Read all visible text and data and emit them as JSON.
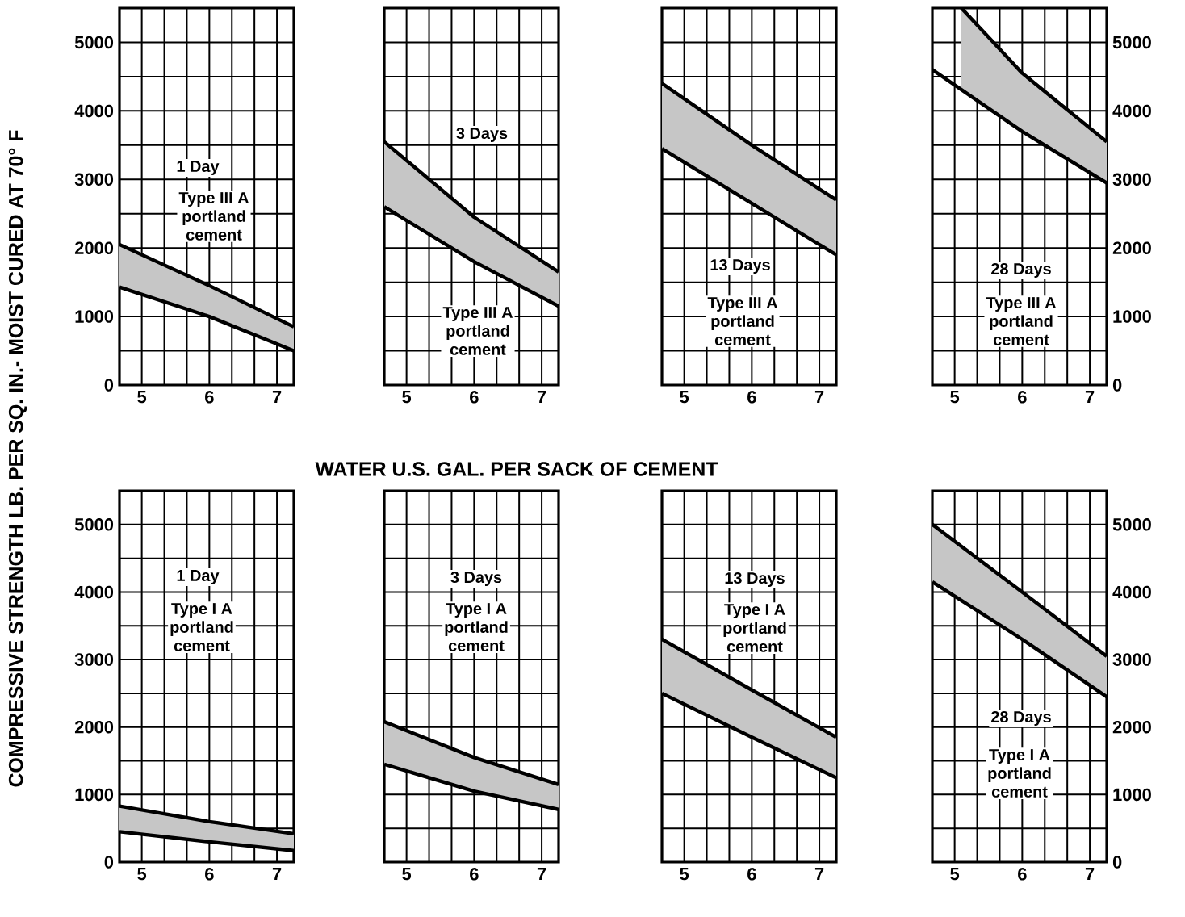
{
  "chart_data": [
    {
      "type": "line",
      "title": "1 Day",
      "annotations": [
        "Type III A",
        "portland",
        "cement"
      ],
      "ylabel": "COMPRESSIVE STRENGTH LB. PER SQ. IN.- MOIST CURED AT 70° F",
      "xlabel": "WATER U.S. GAL. PER SACK OF CEMENT",
      "xlim": [
        4.67,
        7.25
      ],
      "ylim": [
        0,
        5500
      ],
      "xticks": [
        5,
        6,
        7
      ],
      "yticks": [
        0,
        1000,
        2000,
        3000,
        4000,
        5000
      ],
      "grid": true,
      "series": [
        {
          "color": "#000000",
          "x": [
            4.67,
            6,
            7.25
          ],
          "values": [
            1430,
            1000,
            500
          ]
        },
        {
          "color": "#000000",
          "x": [
            4.67,
            6,
            7.25
          ],
          "values": [
            2050,
            1450,
            850
          ],
          "lower": [
            1430,
            1000,
            500
          ],
          "upper": [
            2050,
            1450,
            850
          ]
        }
      ]
    },
    {
      "type": "line",
      "title": "3 Days",
      "annotations": [
        "Type III A",
        "portland",
        "cement"
      ],
      "xlim": [
        4.67,
        7.25
      ],
      "ylim": [
        0,
        5500
      ],
      "xticks": [
        5,
        6,
        7
      ],
      "yticks": [
        0,
        1000,
        2000,
        3000,
        4000,
        5000
      ],
      "grid": true,
      "tick_labels": "x",
      "series": [
        {
          "color": "#000000",
          "x": [
            4.67,
            6,
            7.25
          ],
          "values": [
            2600,
            1800,
            1150
          ]
        },
        {
          "color": "#000000",
          "x": [
            4.67,
            6,
            7.25
          ],
          "values": [
            3550,
            2450,
            1650
          ],
          "lower": [
            2600,
            1800,
            1150
          ],
          "upper": [
            3550,
            2450,
            1650
          ]
        }
      ]
    },
    {
      "type": "line",
      "title": "13 Days",
      "annotations": [
        "Type III A",
        "portland",
        "cement"
      ],
      "xlim": [
        4.67,
        7.25
      ],
      "ylim": [
        0,
        5500
      ],
      "xticks": [
        5,
        6,
        7
      ],
      "yticks": [
        0,
        1000,
        2000,
        3000,
        4000,
        5000
      ],
      "grid": true,
      "tick_labels": "x",
      "series": [
        {
          "color": "#000000",
          "x": [
            4.67,
            6,
            7.25
          ],
          "values": [
            3450,
            2650,
            1900
          ]
        },
        {
          "color": "#000000",
          "x": [
            4.67,
            6,
            7.25
          ],
          "values": [
            4400,
            3500,
            2700
          ],
          "lower": [
            3450,
            2650,
            1900
          ],
          "upper": [
            4400,
            3500,
            2700
          ]
        }
      ]
    },
    {
      "type": "line",
      "title": "28 Days",
      "annotations": [
        "Type III A",
        "portland",
        "cement"
      ],
      "xlim": [
        4.67,
        7.25
      ],
      "ylim": [
        0,
        5500
      ],
      "xticks": [
        5,
        6,
        7
      ],
      "yticks": [
        0,
        1000,
        2000,
        3000,
        4000,
        5000
      ],
      "grid": true,
      "series": [
        {
          "color": "#000000",
          "x": [
            4.67,
            6,
            7.25
          ],
          "values": [
            4600,
            3700,
            2950
          ]
        },
        {
          "color": "#000000",
          "x": [
            5.1,
            6,
            7.25
          ],
          "values": [
            5500,
            4550,
            3550
          ],
          "lower": [
            4300,
            3700,
            2950
          ],
          "upper": [
            5500,
            4550,
            3550
          ]
        }
      ]
    },
    {
      "type": "line",
      "title": "1 Day",
      "annotations": [
        "Type I A",
        "portland",
        "cement"
      ],
      "xlim": [
        4.67,
        7.25
      ],
      "ylim": [
        0,
        5500
      ],
      "xticks": [
        5,
        6,
        7
      ],
      "yticks": [
        0,
        1000,
        2000,
        3000,
        4000,
        5000
      ],
      "grid": true,
      "series": [
        {
          "color": "#000000",
          "x": [
            4.67,
            6,
            7.25
          ],
          "values": [
            450,
            300,
            170
          ]
        },
        {
          "color": "#000000",
          "x": [
            4.67,
            6,
            7.25
          ],
          "values": [
            830,
            600,
            420
          ],
          "lower": [
            450,
            300,
            170
          ],
          "upper": [
            830,
            600,
            420
          ]
        }
      ]
    },
    {
      "type": "line",
      "title": "3 Days",
      "annotations": [
        "Type I A",
        "portland",
        "cement"
      ],
      "xlim": [
        4.67,
        7.25
      ],
      "ylim": [
        0,
        5500
      ],
      "xticks": [
        5,
        6,
        7
      ],
      "yticks": [
        0,
        1000,
        2000,
        3000,
        4000,
        5000
      ],
      "grid": true,
      "tick_labels": "x",
      "series": [
        {
          "color": "#000000",
          "x": [
            4.67,
            6,
            7.25
          ],
          "values": [
            1450,
            1050,
            780
          ]
        },
        {
          "color": "#000000",
          "x": [
            4.67,
            6,
            7.25
          ],
          "values": [
            2080,
            1550,
            1150
          ],
          "lower": [
            1450,
            1050,
            780
          ],
          "upper": [
            2080,
            1550,
            1150
          ]
        }
      ]
    },
    {
      "type": "line",
      "title": "13 Days",
      "annotations": [
        "Type I A",
        "portland",
        "cement"
      ],
      "xlim": [
        4.67,
        7.25
      ],
      "ylim": [
        0,
        5500
      ],
      "xticks": [
        5,
        6,
        7
      ],
      "yticks": [
        0,
        1000,
        2000,
        3000,
        4000,
        5000
      ],
      "grid": true,
      "tick_labels": "x",
      "series": [
        {
          "color": "#000000",
          "x": [
            4.67,
            6,
            7.25
          ],
          "values": [
            2500,
            1850,
            1250
          ]
        },
        {
          "color": "#000000",
          "x": [
            4.67,
            6,
            7.25
          ],
          "values": [
            3300,
            2550,
            1850
          ],
          "lower": [
            2500,
            1850,
            1250
          ],
          "upper": [
            3300,
            2550,
            1850
          ]
        }
      ]
    },
    {
      "type": "line",
      "title": "28 Days",
      "annotations": [
        "Type I A",
        "portland",
        "cement"
      ],
      "xlim": [
        4.67,
        7.25
      ],
      "ylim": [
        0,
        5500
      ],
      "xticks": [
        5,
        6,
        7
      ],
      "yticks": [
        0,
        1000,
        2000,
        3000,
        4000,
        5000
      ],
      "grid": true,
      "series": [
        {
          "color": "#000000",
          "x": [
            4.67,
            6,
            7.25
          ],
          "values": [
            4150,
            3300,
            2450
          ]
        },
        {
          "color": "#000000",
          "x": [
            4.67,
            6,
            7.25
          ],
          "values": [
            5000,
            4000,
            3050
          ],
          "lower": [
            4150,
            3300,
            2450
          ],
          "upper": [
            5000,
            4000,
            3050
          ]
        }
      ]
    }
  ]
}
